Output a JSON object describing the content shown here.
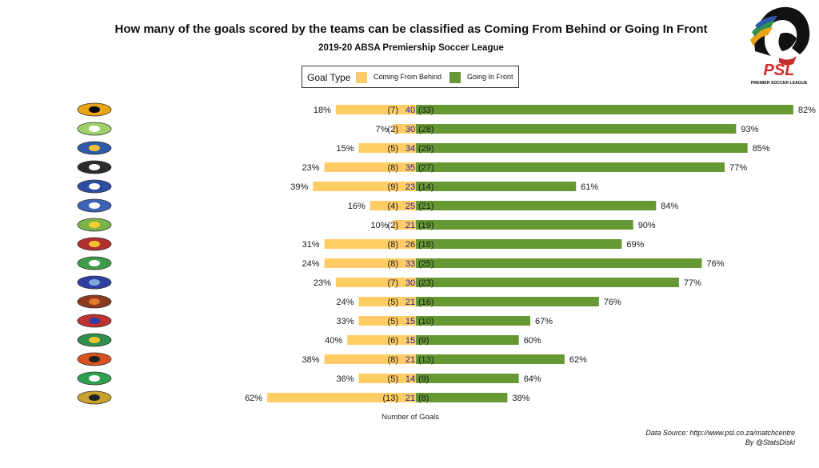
{
  "title": "How many of the goals scored by the teams can be classified as Coming From Behind or Going In Front",
  "subtitle": "2019-20 ABSA Premiership Soccer League",
  "legend": {
    "title": "Goal Type",
    "items": [
      {
        "label": "Coming From Behind",
        "color": "#FFCC66"
      },
      {
        "label": "Going In Front",
        "color": "#669933"
      }
    ]
  },
  "logo": {
    "text": "PSL",
    "caption": "PREMIER SOCCER LEAGUE"
  },
  "source": {
    "line1": "Data Source: http://www.psl.co.za/matchcentre",
    "line2": "By @StatsDiski"
  },
  "colors": {
    "behind": "#FFCC66",
    "front": "#669933",
    "total": "#1f1f8f"
  },
  "chart_data": {
    "type": "bar",
    "orientation": "horizontal-diverging",
    "xlabel": "Number of Goals",
    "series": [
      {
        "name": "Coming From Behind",
        "values": [
          7,
          2,
          5,
          8,
          9,
          4,
          2,
          8,
          8,
          7,
          5,
          5,
          6,
          8,
          5,
          13
        ],
        "percent_labels": [
          "18%",
          "7%",
          "15%",
          "23%",
          "39%",
          "16%",
          "10%",
          "31%",
          "24%",
          "23%",
          "24%",
          "33%",
          "40%",
          "38%",
          "36%",
          "62%"
        ]
      },
      {
        "name": "Going In Front",
        "values": [
          33,
          28,
          29,
          27,
          14,
          21,
          19,
          18,
          25,
          23,
          16,
          10,
          9,
          13,
          9,
          8
        ],
        "percent_labels": [
          "82%",
          "93%",
          "85%",
          "77%",
          "61%",
          "84%",
          "90%",
          "69%",
          "76%",
          "77%",
          "76%",
          "67%",
          "60%",
          "62%",
          "64%",
          "38%"
        ]
      }
    ],
    "totals": [
      40,
      30,
      34,
      35,
      23,
      25,
      21,
      26,
      33,
      30,
      21,
      15,
      15,
      21,
      14,
      21
    ],
    "team_badges": [
      {
        "color": "#E8A317",
        "accent": "#000000"
      },
      {
        "color": "#9FD16B",
        "accent": "#ffffff"
      },
      {
        "color": "#2E5AA8",
        "accent": "#F2C230"
      },
      {
        "color": "#2b2b2b",
        "accent": "#ffffff"
      },
      {
        "color": "#2C4FA3",
        "accent": "#ffffff"
      },
      {
        "color": "#3E62B5",
        "accent": "#ffffff"
      },
      {
        "color": "#7BB54A",
        "accent": "#F2D230"
      },
      {
        "color": "#B22D2D",
        "accent": "#F2C230"
      },
      {
        "color": "#3F9B45",
        "accent": "#ffffff"
      },
      {
        "color": "#2E3FA0",
        "accent": "#7FA8E0"
      },
      {
        "color": "#8B3A1E",
        "accent": "#E07A2E"
      },
      {
        "color": "#C0302E",
        "accent": "#2E3FA0"
      },
      {
        "color": "#2E8F4E",
        "accent": "#F2C230"
      },
      {
        "color": "#D9531E",
        "accent": "#222222"
      },
      {
        "color": "#2E9F4E",
        "accent": "#ffffff"
      },
      {
        "color": "#C8A030",
        "accent": "#222222"
      }
    ]
  }
}
